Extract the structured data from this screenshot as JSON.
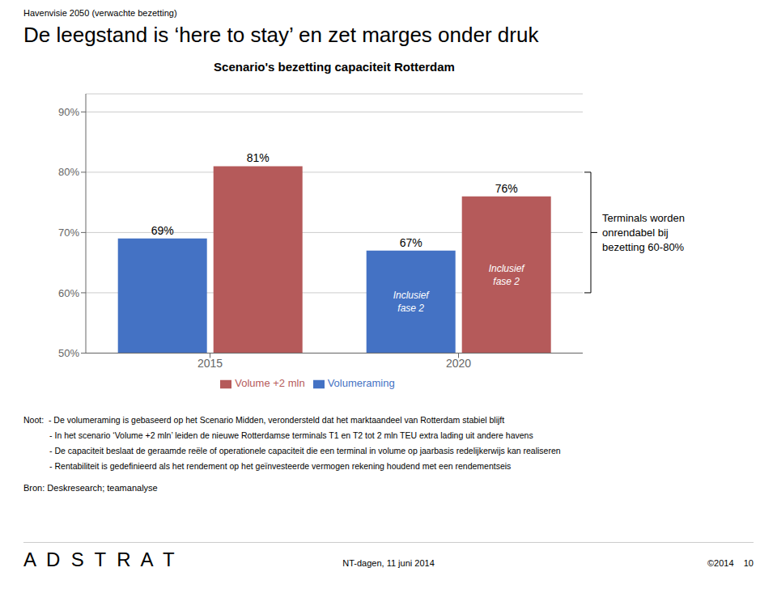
{
  "chart_data": {
    "type": "bar",
    "supertitle": "Havenvisie 2050 (verwachte bezetting)",
    "title": "De leegstand is ‘here to stay’ en zet marges onder druk",
    "chart_title": "Scenario's bezetting capaciteit Rotterdam",
    "categories": [
      "2015",
      "2020"
    ],
    "series": [
      {
        "name": "Volumeraming",
        "color": "#4472C4",
        "values": [
          0.69,
          0.67
        ],
        "value_labels": [
          "69%",
          "67%"
        ],
        "bar_labels": [
          null,
          "Inclusief\nfase 2"
        ]
      },
      {
        "name": "Volume +2 mln",
        "color": "#B55A5A",
        "values": [
          0.81,
          0.76
        ],
        "value_labels": [
          "81%",
          "76%"
        ],
        "bar_labels": [
          null,
          "Inclusief\nfase 2"
        ]
      }
    ],
    "ylim": [
      0.5,
      0.93
    ],
    "yticks": [
      {
        "value": 0.5,
        "label": "50%"
      },
      {
        "value": 0.6,
        "label": "60%"
      },
      {
        "value": 0.7,
        "label": "70%"
      },
      {
        "value": 0.8,
        "label": "80%"
      },
      {
        "value": 0.9,
        "label": "90%"
      }
    ],
    "grid": true,
    "legend": "bottom",
    "data_labels": true,
    "annotations": [
      {
        "text": "Terminals worden\nonrendabel bij\nbezetting 60-80%",
        "y_range": [
          0.6,
          0.8
        ]
      }
    ],
    "notes": [
      "Noot:  - De volumeraming is gebaseerd op het Scenario Midden, verondersteld dat het marktaandeel van Rotterdam stabiel blijft",
      "           - In het scenario ‘Volume +2 mln’ leiden de nieuwe Rotterdamse terminals T1 en T2 tot 2 mln TEU extra lading uit andere havens",
      "           - De capaciteit beslaat de geraamde reële of operationele capaciteit die een terminal in volume op jaarbasis redelijkerwijs kan realiseren",
      "           - Rentabiliteit is gedefinieerd als het rendement op het geïnvesteerde vermogen rekening houdend met een rendementseis"
    ],
    "source": "Bron: Deskresearch; teamanalyse",
    "footer": {
      "left": "A  D  S  T  R  A  T",
      "center": "NT-dagen, 11 juni 2014",
      "right": "©2014    10"
    }
  }
}
